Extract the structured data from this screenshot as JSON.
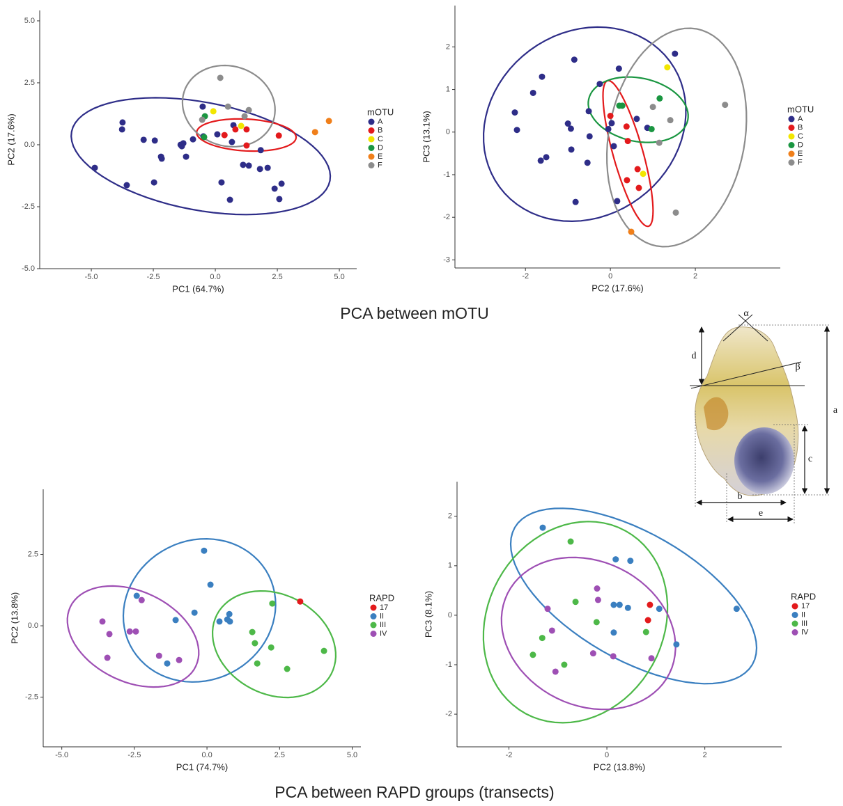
{
  "figure_titles": [
    "PCA between mOTU",
    "PCA between RAPD groups (transects)"
  ],
  "shell_diagram": {
    "labels": [
      "α",
      "β",
      "a",
      "b",
      "c",
      "d",
      "e"
    ]
  },
  "chart_data": [
    {
      "type": "scatter",
      "x_label": "PC1 (64.7%)",
      "y_label": "PC2 (17.6%)",
      "legend_title": "mOTU",
      "ellipses": true,
      "xlim": [
        -7.08,
        5.7
      ],
      "ylim": [
        -5.0,
        5.42
      ],
      "xticks": [
        {
          "value": -5,
          "label": "-5.0"
        },
        -2.5,
        {
          "value": 0,
          "label": "0.0"
        },
        2.5,
        {
          "value": 5,
          "label": "5.0"
        }
      ],
      "yticks": [
        {
          "value": -5,
          "label": "-5.0"
        },
        -2.5,
        {
          "value": 0,
          "label": "0.0"
        },
        2.5,
        {
          "value": 5,
          "label": "5.0"
        }
      ],
      "series": [
        {
          "name": "A",
          "color": "#2e2d88",
          "x": [
            -4.86,
            -3.74,
            -3.76,
            -3.57,
            -2.89,
            -2.44,
            -2.47,
            -2.19,
            -2.16,
            -1.4,
            -1.35,
            -1.29,
            -1.18,
            -0.9,
            -0.51,
            0.08,
            0.25,
            0.59,
            0.73,
            0.67,
            1.12,
            1.35,
            1.83,
            1.8,
            2.11,
            2.39,
            2.67,
            2.58,
            -0.48
          ],
          "values": [
            -0.93,
            0.9,
            0.62,
            -1.63,
            0.2,
            0.17,
            -1.52,
            -0.48,
            -0.56,
            0,
            -0.06,
            0.06,
            -0.48,
            0.22,
            1.54,
            0.42,
            -1.52,
            -2.22,
            0.79,
            0.11,
            -0.81,
            -0.84,
            -0.22,
            -0.98,
            -0.93,
            -1.77,
            -1.57,
            -2.19,
            0.34
          ]
        },
        {
          "name": "B",
          "color": "#e31a1c",
          "x": [
            0.37,
            0.81,
            1.26,
            1.26,
            2.56
          ],
          "values": [
            0.39,
            0.62,
            0.62,
            -0.03,
            0.37
          ]
        },
        {
          "name": "C",
          "color": "#f2e600",
          "x": [
            -0.08,
            1.04
          ],
          "values": [
            1.35,
            0.76
          ]
        },
        {
          "name": "D",
          "color": "#1a9641",
          "x": [
            -0.42,
            -0.45
          ],
          "values": [
            1.15,
            0.31
          ]
        },
        {
          "name": "E",
          "color": "#f07f1a",
          "x": [
            4.02,
            4.58
          ],
          "values": [
            0.51,
            0.96
          ]
        },
        {
          "name": "F",
          "color": "#8c8c8c",
          "x": [
            0.2,
            0.51,
            1.35,
            -0.53,
            1.18
          ],
          "values": [
            2.7,
            1.54,
            1.4,
            1.01,
            1.15
          ]
        }
      ]
    },
    {
      "type": "scatter",
      "x_label": "PC2 (17.6%)",
      "y_label": "PC3 (13.1%)",
      "legend_title": "mOTU",
      "ellipses": true,
      "xlim": [
        -3.66,
        4.0
      ],
      "ylim": [
        -3.19,
        2.97
      ],
      "xticks": [
        -2,
        0,
        2
      ],
      "yticks": [
        -3,
        -2,
        -1,
        0,
        1,
        2
      ],
      "series": [
        {
          "name": "A",
          "color": "#2e2d88",
          "x": [
            -0.85,
            -1.61,
            -1.82,
            -2.25,
            -2.2,
            -1.0,
            -0.93,
            -0.51,
            -0.25,
            0.2,
            -0.49,
            -0.92,
            -1.51,
            -1.64,
            -0.54,
            -0.82,
            0.16,
            0.08,
            0.03,
            -0.05,
            0.62,
            1.52,
            0.87
          ],
          "values": [
            1.7,
            1.3,
            0.92,
            0.46,
            0.05,
            0.2,
            0.08,
            0.49,
            1.13,
            1.49,
            -0.1,
            -0.41,
            -0.59,
            -0.67,
            -0.72,
            -1.64,
            -1.62,
            -0.33,
            0.21,
            0.07,
            0.31,
            1.84,
            0.1
          ]
        },
        {
          "name": "B",
          "color": "#e31a1c",
          "x": [
            0,
            0.38,
            0.41,
            0.64,
            0.67,
            0.39
          ],
          "values": [
            0.38,
            0.13,
            -0.21,
            -0.87,
            -1.31,
            -1.13
          ]
        },
        {
          "name": "C",
          "color": "#f2e600",
          "x": [
            1.34,
            0.77
          ],
          "values": [
            1.52,
            -0.98
          ]
        },
        {
          "name": "D",
          "color": "#1a9641",
          "x": [
            0.21,
            0.28,
            1.16,
            0.97
          ],
          "values": [
            0.62,
            0.62,
            0.79,
            0.07
          ]
        },
        {
          "name": "E",
          "color": "#f07f1a",
          "x": [
            0.49
          ],
          "values": [
            -2.34
          ]
        },
        {
          "name": "F",
          "color": "#8c8c8c",
          "x": [
            1.0,
            1.41,
            1.15,
            1.54,
            2.7
          ],
          "values": [
            0.59,
            0.28,
            -0.25,
            -1.89,
            0.64
          ]
        }
      ]
    },
    {
      "type": "scatter",
      "x_label": "PC1 (74.7%)",
      "y_label": "PC2 (13.8%)",
      "legend_title": "RAPD",
      "ellipses": true,
      "xlim": [
        -5.64,
        5.3
      ],
      "ylim": [
        -4.24,
        4.78
      ],
      "xticks": [
        {
          "value": -5,
          "label": "-5.0"
        },
        -2.5,
        {
          "value": 0,
          "label": "0.0"
        },
        2.5,
        {
          "value": 5,
          "label": "5.0"
        }
      ],
      "yticks": [
        -2.5,
        {
          "value": 0,
          "label": "0.0"
        },
        2.5
      ],
      "series": [
        {
          "name": "17",
          "color": "#e31a1c",
          "x": [
            3.21
          ],
          "values": [
            0.85
          ]
        },
        {
          "name": "II",
          "color": "#3a7fc0",
          "x": [
            -0.1,
            0.12,
            -0.43,
            -1.08,
            -2.42,
            -1.37,
            0.43,
            0.7,
            0.77,
            0.79
          ],
          "values": [
            2.63,
            1.44,
            0.46,
            0.2,
            1.05,
            -1.32,
            0.15,
            0.22,
            0.41,
            0.15
          ]
        },
        {
          "name": "III",
          "color": "#4db848",
          "x": [
            2.25,
            1.56,
            1.65,
            1.73,
            2.21,
            2.76,
            4.03
          ],
          "values": [
            0.78,
            -0.22,
            -0.61,
            -1.32,
            -0.76,
            -1.51,
            -0.88
          ]
        },
        {
          "name": "IV",
          "color": "#9e4fb4",
          "x": [
            -3.6,
            -3.36,
            -3.43,
            -2.66,
            -2.45,
            -2.25,
            -1.65,
            -0.96
          ],
          "values": [
            0.15,
            -0.29,
            -1.12,
            -0.2,
            -0.2,
            0.9,
            -1.05,
            -1.2
          ]
        }
      ]
    },
    {
      "type": "scatter",
      "x_label": "PC2 (13.8%)",
      "y_label": "PC3 (8.1%)",
      "legend_title": "RAPD",
      "ellipses": true,
      "xlim": [
        -3.06,
        3.57
      ],
      "ylim": [
        -2.66,
        2.7
      ],
      "xticks": [
        -2,
        0,
        2
      ],
      "yticks": [
        -2,
        -1,
        0,
        1,
        2
      ],
      "series": [
        {
          "name": "17",
          "color": "#e31a1c",
          "x": [
            0.88,
            0.84
          ],
          "values": [
            0.21,
            -0.1
          ]
        },
        {
          "name": "II",
          "color": "#3a7fc0",
          "x": [
            -1.31,
            0.18,
            0.48,
            0.14,
            0.26,
            0.43,
            0.14,
            1.07,
            1.42,
            2.65
          ],
          "values": [
            1.77,
            1.13,
            1.1,
            0.21,
            0.21,
            0.15,
            -0.35,
            0.13,
            -0.59,
            0.13
          ]
        },
        {
          "name": "III",
          "color": "#4db848",
          "x": [
            -0.74,
            -0.64,
            -0.21,
            -1.32,
            -1.51,
            -0.87,
            0.8
          ],
          "values": [
            1.49,
            0.27,
            -0.14,
            -0.46,
            -0.8,
            -1.0,
            -0.34
          ]
        },
        {
          "name": "IV",
          "color": "#9e4fb4",
          "x": [
            -1.21,
            -1.12,
            -0.2,
            -0.18,
            -0.28,
            0.13,
            0.91,
            -1.05
          ],
          "values": [
            0.13,
            -0.31,
            0.54,
            0.31,
            -0.77,
            -0.83,
            -0.87,
            -1.14
          ]
        }
      ]
    }
  ]
}
